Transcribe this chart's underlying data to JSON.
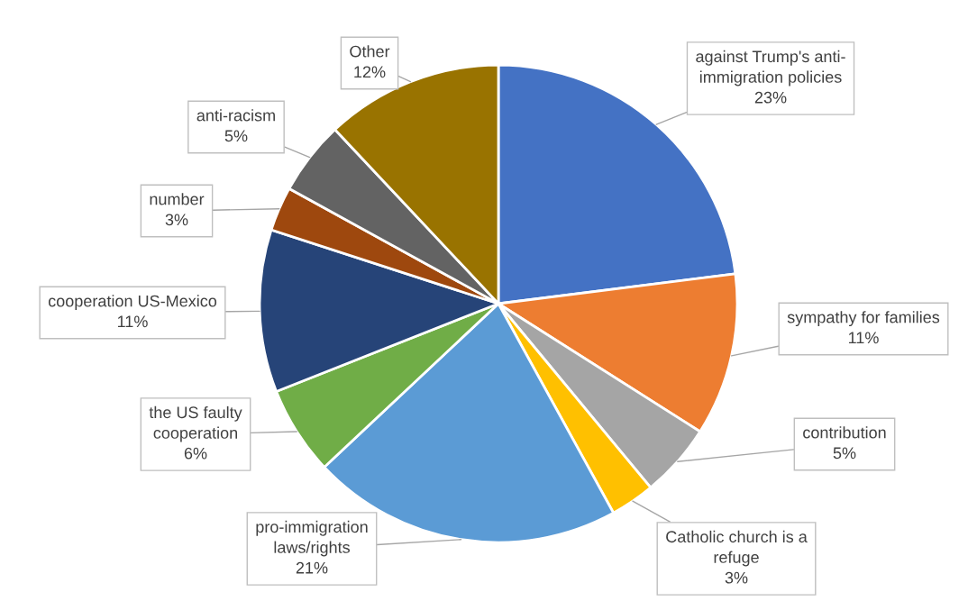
{
  "chart_data": {
    "type": "pie",
    "categories": [
      "against Trump's anti-\nimmigration policies",
      "sympathy for families",
      "contribution",
      "Catholic church is a\nrefuge",
      "pro-immigration\nlaws/rights",
      "the US faulty\ncooperation",
      "cooperation US-Mexico",
      "number",
      "anti-racism",
      "Other"
    ],
    "values": [
      23,
      11,
      5,
      3,
      21,
      6,
      11,
      3,
      5,
      12
    ],
    "colors": [
      "#4472c4",
      "#ed7d31",
      "#a5a5a5",
      "#ffc000",
      "#5b9bd5",
      "#70ad47",
      "#264478",
      "#9e480e",
      "#636363",
      "#997300"
    ],
    "value_labels": [
      "23%",
      "11%",
      "5%",
      "3%",
      "21%",
      "6%",
      "11%",
      "3%",
      "5%",
      "12%"
    ]
  }
}
